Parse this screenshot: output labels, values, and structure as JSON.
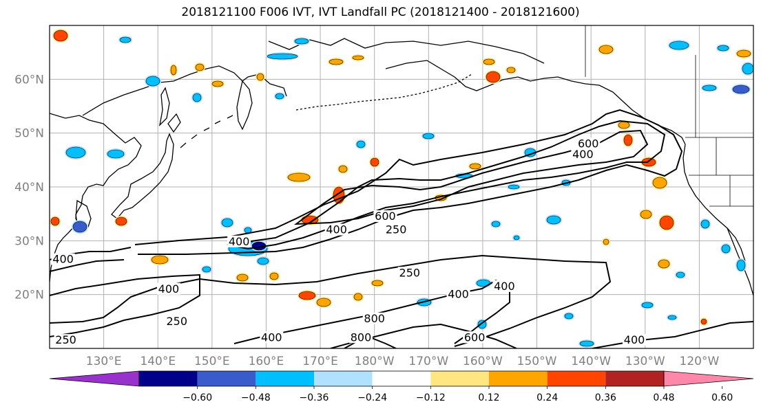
{
  "title": "2018121100 F006 IVT, IVT Landfall PC (2018121400 - 2018121600)",
  "lat_labels": [
    "60°N",
    "50°N",
    "40°N",
    "30°N",
    "20°N"
  ],
  "lon_labels": [
    "130°E",
    "140°E",
    "150°E",
    "160°E",
    "170°E",
    "180°W",
    "170°W",
    "160°W",
    "150°W",
    "140°W",
    "130°W",
    "120°W"
  ],
  "colorbar": {
    "colors": [
      "#9932cc",
      "#00008b",
      "#3a5bcc",
      "#00bfff",
      "#b0e2ff",
      "#ffffff",
      "#ffe680",
      "#ffa500",
      "#ff4500",
      "#b22222",
      "#ff88aa"
    ],
    "ticks": [
      "−0.60",
      "−0.48",
      "−0.36",
      "−0.24",
      "−0.12",
      "0.12",
      "0.24",
      "0.36",
      "0.48",
      "0.60"
    ]
  },
  "contour_labels": [
    {
      "text": "400",
      "lon": 122.5,
      "lat": 26
    },
    {
      "text": "400",
      "lon": 155,
      "lat": 29.3
    },
    {
      "text": "400",
      "lon": 173,
      "lat": 31.5
    },
    {
      "text": "600",
      "lon": 182,
      "lat": 34
    },
    {
      "text": "250",
      "lon": 184,
      "lat": 31.5
    },
    {
      "text": "250",
      "lon": 186.5,
      "lat": 23.5
    },
    {
      "text": "400",
      "lon": 142,
      "lat": 20.5
    },
    {
      "text": "250",
      "lon": 143.5,
      "lat": 14.5
    },
    {
      "text": "250",
      "lon": 123,
      "lat": 11
    },
    {
      "text": "400",
      "lon": 161,
      "lat": 11.5
    },
    {
      "text": "800",
      "lon": 180,
      "lat": 15
    },
    {
      "text": "800",
      "lon": 177.5,
      "lat": 11.5
    },
    {
      "text": "400",
      "lon": 195.5,
      "lat": 19.5
    },
    {
      "text": "400",
      "lon": 204,
      "lat": 21
    },
    {
      "text": "600",
      "lon": 198.5,
      "lat": 11.5
    },
    {
      "text": "400",
      "lon": 228,
      "lat": 11
    },
    {
      "text": "400",
      "lon": 218.5,
      "lat": 45.5
    },
    {
      "text": "600",
      "lon": 219.5,
      "lat": 47.5
    }
  ]
}
